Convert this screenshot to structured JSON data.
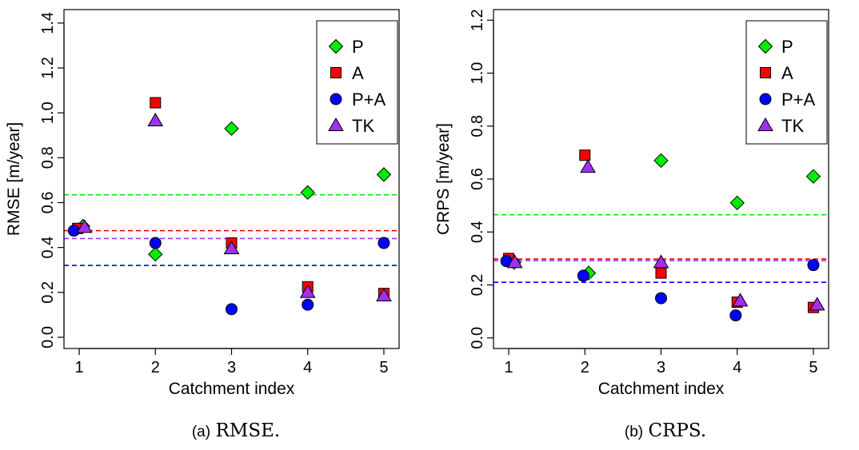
{
  "chart_data": [
    {
      "type": "scatter",
      "xlabel": "Catchment index",
      "ylabel": "RMSE [m/year]",
      "x_ticks": [
        "1",
        "2",
        "3",
        "4",
        "5"
      ],
      "y_ticks": [
        "0.0",
        "0.2",
        "0.4",
        "0.6",
        "0.8",
        "1.0",
        "1.2",
        "1.4"
      ],
      "xlim": [
        0.8,
        5.2
      ],
      "ylim": [
        -0.05,
        1.46
      ],
      "grid": false,
      "legend_position": "top-right",
      "series": [
        {
          "name": "P",
          "shape": "diamond",
          "color": "#00ee00",
          "x": [
            1.05,
            2.0,
            3.0,
            4.0,
            5.0
          ],
          "y": [
            0.495,
            0.37,
            0.93,
            0.645,
            0.725
          ]
        },
        {
          "name": "A",
          "shape": "square",
          "color": "#ff0000",
          "x": [
            0.98,
            2.0,
            3.0,
            4.0,
            5.0
          ],
          "y": [
            0.485,
            1.045,
            0.42,
            0.225,
            0.195
          ]
        },
        {
          "name": "P+A",
          "shape": "circle",
          "color": "#0000ff",
          "x": [
            0.93,
            2.0,
            3.0,
            4.0,
            5.0
          ],
          "y": [
            0.475,
            0.42,
            0.125,
            0.145,
            0.42
          ]
        },
        {
          "name": "TK",
          "shape": "triangle",
          "color": "#a030f0",
          "x": [
            1.07,
            2.0,
            3.0,
            4.0,
            5.0
          ],
          "y": [
            0.49,
            0.965,
            0.395,
            0.2,
            0.185
          ]
        }
      ],
      "reference_lines": [
        {
          "series": "P",
          "y": 0.635,
          "color": "#00ee00"
        },
        {
          "series": "A",
          "y": 0.475,
          "color": "#ff0000"
        },
        {
          "series": "TK",
          "y": 0.44,
          "color": "#a030f0"
        },
        {
          "series": "P+A",
          "y": 0.32,
          "color": "#0000ff"
        }
      ]
    },
    {
      "type": "scatter",
      "xlabel": "Catchment index",
      "ylabel": "CRPS [m/year]",
      "x_ticks": [
        "1",
        "2",
        "3",
        "4",
        "5"
      ],
      "y_ticks": [
        "0.0",
        "0.2",
        "0.4",
        "0.6",
        "0.8",
        "1.0",
        "1.2"
      ],
      "xlim": [
        0.8,
        5.2
      ],
      "ylim": [
        -0.04,
        1.24
      ],
      "grid": false,
      "legend_position": "top-right",
      "series": [
        {
          "name": "P",
          "shape": "diamond",
          "color": "#00ee00",
          "x": [
            1.07,
            2.05,
            3.0,
            4.0,
            5.0
          ],
          "y": [
            0.285,
            0.245,
            0.67,
            0.51,
            0.61
          ]
        },
        {
          "name": "A",
          "shape": "square",
          "color": "#ff0000",
          "x": [
            1.0,
            2.0,
            3.0,
            4.0,
            5.0
          ],
          "y": [
            0.3,
            0.69,
            0.245,
            0.135,
            0.115
          ]
        },
        {
          "name": "P+A",
          "shape": "circle",
          "color": "#0000ff",
          "x": [
            0.97,
            1.98,
            3.0,
            3.98,
            5.0
          ],
          "y": [
            0.29,
            0.235,
            0.15,
            0.085,
            0.275
          ]
        },
        {
          "name": "TK",
          "shape": "triangle",
          "color": "#a030f0",
          "x": [
            1.08,
            2.04,
            3.0,
            4.04,
            5.05
          ],
          "y": [
            0.285,
            0.645,
            0.285,
            0.14,
            0.125
          ]
        }
      ],
      "reference_lines": [
        {
          "series": "P",
          "y": 0.465,
          "color": "#00ee00"
        },
        {
          "series": "A",
          "y": 0.298,
          "color": "#ff0000"
        },
        {
          "series": "TK",
          "y": 0.292,
          "color": "#a030f0"
        },
        {
          "series": "P+A",
          "y": 0.21,
          "color": "#0000ff"
        }
      ]
    }
  ],
  "captions": [
    {
      "label": "(a)",
      "text": "RMSE."
    },
    {
      "label": "(b)",
      "text": "CRPS."
    }
  ]
}
